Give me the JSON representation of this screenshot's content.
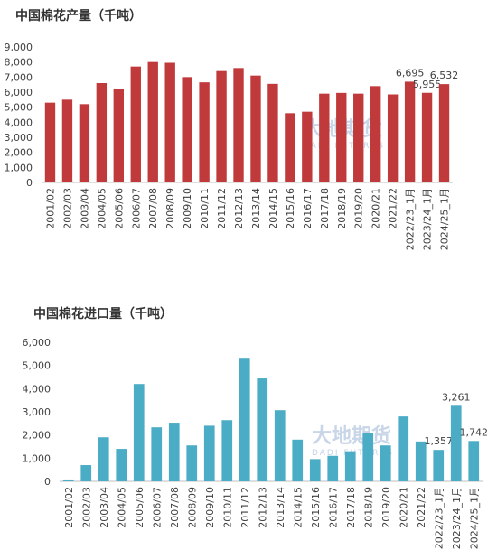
{
  "chart_data": [
    {
      "type": "bar",
      "title": "中国棉花产量（千吨）",
      "color": "#c0393b",
      "grid": false,
      "watermark": "大地期货",
      "watermark_sub": "DADI FUTURES",
      "categories": [
        "2001/02",
        "2002/03",
        "2003/04",
        "2004/05",
        "2005/06",
        "2006/07",
        "2007/08",
        "2008/09",
        "2009/10",
        "2010/11",
        "2011/12",
        "2012/13",
        "2013/14",
        "2014/15",
        "2015/16",
        "2016/17",
        "2017/18",
        "2018/19",
        "2019/20",
        "2020/21",
        "2021/22",
        "2022/23_1月",
        "2023/24_1月",
        "2024/25_1月"
      ],
      "values": [
        5300,
        5500,
        5200,
        6600,
        6200,
        7700,
        8000,
        7950,
        7000,
        6650,
        7400,
        7600,
        7100,
        6550,
        4600,
        4700,
        5900,
        5950,
        5900,
        6400,
        5850,
        6695,
        5955,
        6532
      ],
      "value_labels": [
        null,
        null,
        null,
        null,
        null,
        null,
        null,
        null,
        null,
        null,
        null,
        null,
        null,
        null,
        null,
        null,
        null,
        null,
        null,
        null,
        null,
        "6,695",
        "5,955",
        "6,532"
      ],
      "ylim": [
        0,
        9000
      ],
      "yticks": [
        0,
        {
          "value": 1000,
          "label": "1,000"
        },
        {
          "value": 2000,
          "label": "2,000"
        },
        {
          "value": 3000,
          "label": "3,000"
        },
        {
          "value": 4000,
          "label": "4,000"
        },
        {
          "value": 5000,
          "label": "5,000"
        },
        {
          "value": 6000,
          "label": "6,000"
        },
        {
          "value": 7000,
          "label": "7,000"
        },
        {
          "value": 8000,
          "label": "8,000"
        },
        {
          "value": 9000,
          "label": "9,000"
        }
      ]
    },
    {
      "type": "bar",
      "title": "中国棉花进口量（千吨）",
      "color": "#4bacc6",
      "grid": false,
      "watermark": "大地期货",
      "watermark_sub": "DADI FUTURES",
      "categories": [
        "2001/02",
        "2002/03",
        "2003/04",
        "2004/05",
        "2005/06",
        "2006/07",
        "2007/08",
        "2008/09",
        "2009/10",
        "2010/11",
        "2011/12",
        "2012/13",
        "2013/14",
        "2014/15",
        "2015/16",
        "2016/17",
        "2017/18",
        "2018/19",
        "2019/20",
        "2020/21",
        "2021/22",
        "2022/23_1月",
        "2023/24_1月",
        "2024/25_1月"
      ],
      "values": [
        80,
        700,
        1900,
        1400,
        4200,
        2330,
        2530,
        1550,
        2400,
        2640,
        5330,
        4440,
        3070,
        1800,
        960,
        1100,
        1300,
        2100,
        1550,
        2800,
        1720,
        1357,
        3261,
        1742
      ],
      "value_labels": [
        null,
        null,
        null,
        null,
        null,
        null,
        null,
        null,
        null,
        null,
        null,
        null,
        null,
        null,
        null,
        null,
        null,
        null,
        null,
        null,
        null,
        "1,357",
        "3,261",
        "1,742"
      ],
      "ylim": [
        0,
        6000
      ],
      "yticks": [
        0,
        {
          "value": 1000,
          "label": "1,000"
        },
        {
          "value": 2000,
          "label": "2,000"
        },
        {
          "value": 3000,
          "label": "3,000"
        },
        {
          "value": 4000,
          "label": "4,000"
        },
        {
          "value": 5000,
          "label": "5,000"
        },
        {
          "value": 6000,
          "label": "6,000"
        }
      ]
    }
  ]
}
